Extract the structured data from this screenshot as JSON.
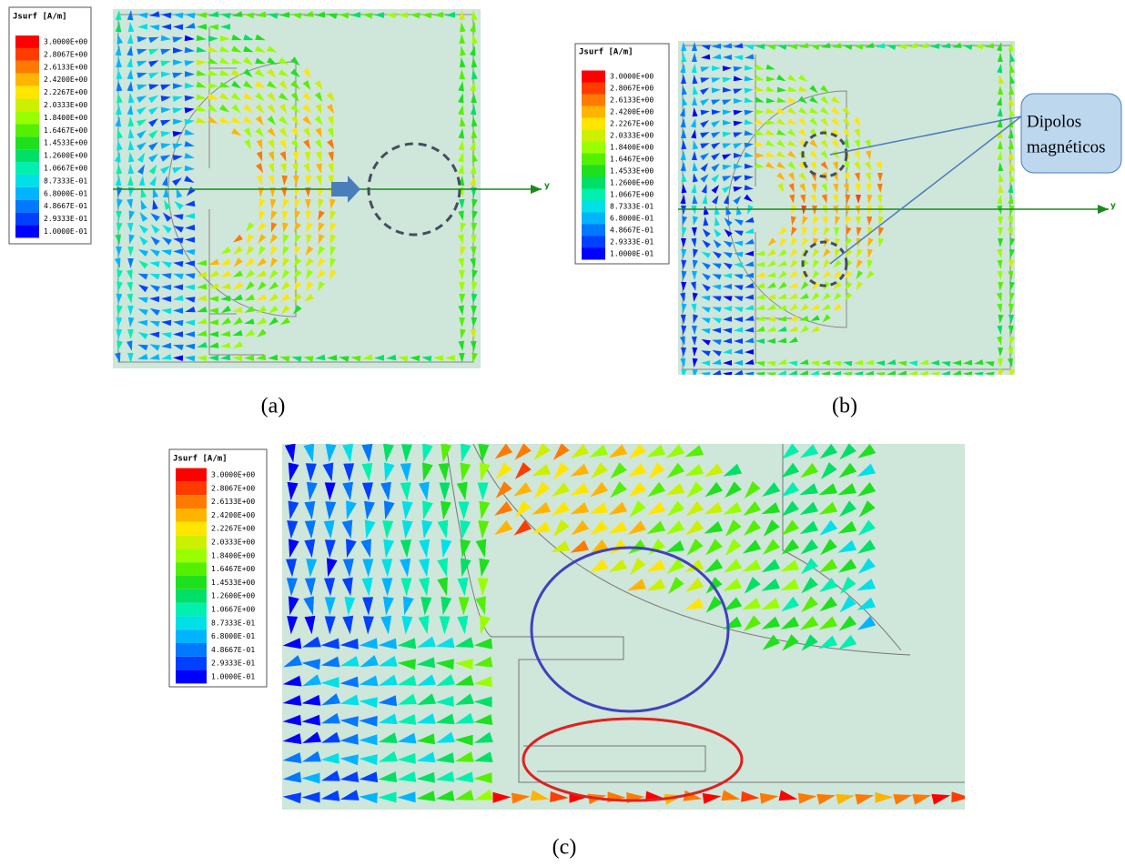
{
  "panels": [
    {
      "caption": "(a)",
      "axis_label": "y",
      "legend": {
        "title": "Jsurf [A/m]",
        "labels": [
          "3.0000E+00",
          "2.8067E+00",
          "2.6133E+00",
          "2.4200E+00",
          "2.2267E+00",
          "2.0333E+00",
          "1.8400E+00",
          "1.6467E+00",
          "1.4533E+00",
          "1.2600E+00",
          "1.0667E+00",
          "8.7333E-01",
          "6.8000E-01",
          "4.8667E-01",
          "2.9333E-01",
          "1.0000E-01"
        ]
      }
    },
    {
      "caption": "(b)",
      "axis_label": "y",
      "callout": [
        "Dipolos",
        "magnéticos"
      ],
      "legend": {
        "title": "Jsurf [A/m]",
        "labels": [
          "3.0000E+00",
          "2.8067E+00",
          "2.6133E+00",
          "2.4200E+00",
          "2.2267E+00",
          "2.0333E+00",
          "1.8400E+00",
          "1.6467E+00",
          "1.4533E+00",
          "1.2600E+00",
          "1.0667E+00",
          "8.7333E-01",
          "6.8000E-01",
          "4.8667E-01",
          "2.9333E-01",
          "1.0000E-01"
        ]
      }
    },
    {
      "caption": "(c)",
      "legend": {
        "title": "Jsurf [A/m]",
        "labels": [
          "3.0000E+00",
          "2.8067E+00",
          "2.6133E+00",
          "2.4200E+00",
          "2.2267E+00",
          "2.0333E+00",
          "1.8400E+00",
          "1.6467E+00",
          "1.4533E+00",
          "1.2600E+00",
          "1.0667E+00",
          "8.7333E-01",
          "6.8000E-01",
          "4.8667E-01",
          "2.9333E-01",
          "1.0000E-01"
        ]
      }
    }
  ],
  "colormap": [
    "#ff0000",
    "#ff3c00",
    "#ff7a00",
    "#ffb400",
    "#ffe600",
    "#ccf000",
    "#99ff00",
    "#55f000",
    "#1ee01e",
    "#00e066",
    "#00f0b0",
    "#00e0e6",
    "#00b4ff",
    "#0078ff",
    "#0040ff",
    "#0000ff"
  ]
}
